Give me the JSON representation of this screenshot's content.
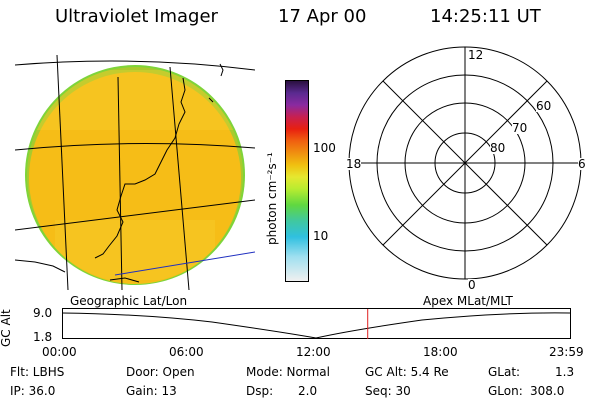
{
  "header": {
    "title": "Ultraviolet Imager",
    "date": "17 Apr 00",
    "time": "14:25:11 UT"
  },
  "colorbar": {
    "unit_label": "photon cm⁻²s⁻¹",
    "ticks": [
      "100",
      "10"
    ]
  },
  "polar_grid": {
    "mlt_labels": [
      "12",
      "18",
      "6",
      "0"
    ],
    "mlat_labels": [
      "60",
      "70",
      "80"
    ]
  },
  "footer": {
    "left_label": "Geographic Lat/Lon",
    "right_label": "Apex MLat/MLT",
    "axis_label": "GC Alt",
    "alt_ticks": [
      "9.0",
      "1.8"
    ],
    "time_ticks": [
      "00:00",
      "06:00",
      "12:00",
      "18:00",
      "23:59"
    ]
  },
  "orbit": {
    "current_time_fraction": 0.601
  },
  "info": {
    "filter": "Flt: LBHS",
    "door": "Door: Open",
    "mode": "Mode: Normal",
    "gc_alt": "GC Alt: 5.4 Re",
    "glat": "GLat:",
    "glat_value": "1.3",
    "ip": "IP: 36.0",
    "gain": "Gain: 13",
    "dsp": "Dsp:",
    "dsp_value": "2.0",
    "seq": "Seq: 30",
    "glon": "GLon:",
    "glon_value": "308.0"
  },
  "colors": {
    "disk_fill": "#f4c018",
    "limb": "#7fd43a",
    "cursor": "#e02020",
    "coast": "#000000",
    "blue_line": "#2030c0"
  }
}
